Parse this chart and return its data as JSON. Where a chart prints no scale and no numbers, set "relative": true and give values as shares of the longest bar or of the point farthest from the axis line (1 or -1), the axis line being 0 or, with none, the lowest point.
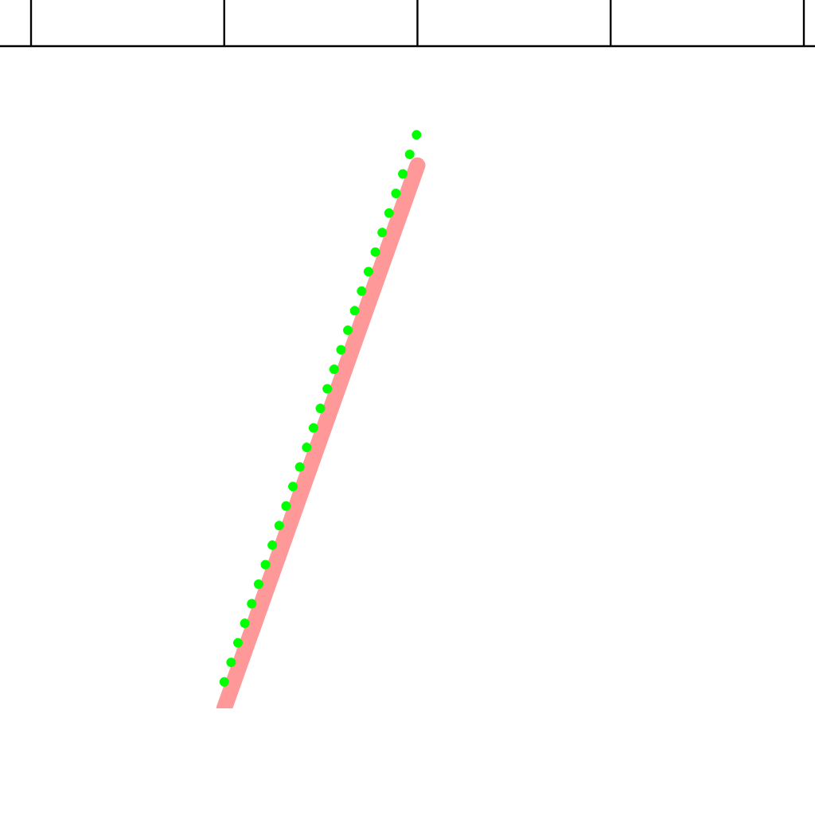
{
  "chart_data": {
    "type": "line",
    "relative": true,
    "categories": [
      null,
      null,
      null,
      null,
      null
    ],
    "series": [
      {
        "color": "#ff9999",
        "line_style": "solid",
        "values": [
          null,
          -1,
          -0.18,
          null,
          null
        ]
      },
      {
        "color": "#00ff00",
        "line_style": "dotted",
        "values": [
          null,
          -0.96,
          -0.13,
          null,
          null
        ]
      }
    ]
  }
}
